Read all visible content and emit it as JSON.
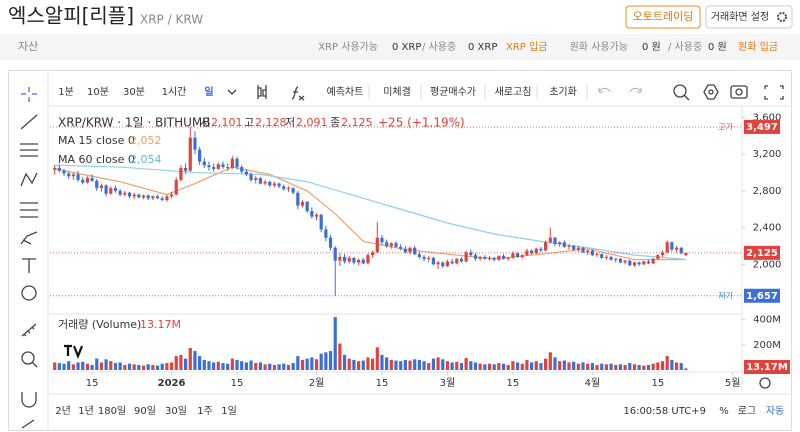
{
  "header": {
    "title": "엑스알피[리플]",
    "pair": "XRP / KRW",
    "buttons": [
      "오토트레이딩",
      "거래화면 설정"
    ]
  },
  "assets": {
    "label": "자산",
    "xrp": {
      "available_label": "XRP 사용가능",
      "available": "0 XRP",
      "in_use_label": "/ 사용중",
      "in_use": "0 XRP",
      "deposit": "XRP 입금"
    },
    "krw": {
      "available_label": "원화 사용가능",
      "available": "0 원",
      "in_use_label": "/ 사용중",
      "in_use": "0 원",
      "deposit": "원화 입금"
    }
  },
  "toolbar": {
    "intervals": [
      "1분",
      "10분",
      "30분",
      "1시간",
      "일"
    ],
    "actions": [
      "예측차트",
      "미체결",
      "평균매수가",
      "새로고침",
      "초기화"
    ]
  },
  "chart_data": {
    "type": "candlestick",
    "title": "XRP/KRW · 1일 · BITHUMB",
    "legend_values": [
      {
        "label": "시",
        "value": "2,101"
      },
      {
        "label": "고",
        "value": "2,128"
      },
      {
        "label": "저",
        "value": "2,091"
      },
      {
        "label": "종",
        "value": "2,125"
      }
    ],
    "change": "+25 (+1.19%)",
    "up_color": "#e0433d",
    "down_color": "#3b6fd8",
    "x": [
      6,
      7,
      8,
      9,
      10,
      11,
      12,
      13,
      14,
      15,
      16,
      17,
      18,
      19,
      20,
      21,
      22,
      23,
      24,
      25,
      26,
      27,
      28,
      29,
      30,
      31,
      32,
      33,
      34,
      35,
      36,
      37,
      38,
      39,
      40,
      41,
      42,
      43,
      44,
      45,
      46,
      47,
      48,
      49,
      50,
      51,
      52,
      53,
      54,
      55,
      56,
      57,
      58,
      59,
      60,
      61,
      62,
      63,
      64,
      65,
      66,
      67,
      68,
      69,
      70,
      71,
      72,
      73,
      74,
      75,
      76,
      77,
      78,
      79,
      80,
      81,
      82,
      83,
      84,
      85,
      86,
      87,
      88,
      89,
      90,
      91,
      92,
      93,
      94,
      95,
      96,
      97,
      98,
      99,
      100,
      101,
      102,
      103,
      104,
      105,
      106,
      107,
      108,
      109,
      110,
      111,
      112,
      113,
      114,
      115,
      116,
      117,
      118,
      119,
      120,
      121,
      122,
      123,
      124,
      125,
      126,
      127,
      128,
      129,
      130,
      131,
      132,
      133,
      134,
      135,
      136,
      137,
      138,
      139,
      140,
      141
    ],
    "open": [
      3030,
      3050,
      3020,
      2990,
      2960,
      2980,
      2920,
      2890,
      2940,
      2910,
      2830,
      2860,
      2770,
      2830,
      2800,
      2760,
      2780,
      2740,
      2760,
      2730,
      2750,
      2720,
      2740,
      2720,
      2700,
      2740,
      2760,
      2920,
      3050,
      3020,
      3380,
      3250,
      3120,
      3080,
      3060,
      3040,
      3090,
      3060,
      3050,
      3150,
      3060,
      3010,
      2980,
      2920,
      2940,
      2880,
      2900,
      2860,
      2880,
      2850,
      2820,
      2830,
      2780,
      2640,
      2680,
      2580,
      2520,
      2540,
      2380,
      2290,
      2180,
      2040,
      2080,
      2030,
      2070,
      2020,
      2050,
      2010,
      2100,
      2130,
      2290,
      2240,
      2200,
      2230,
      2190,
      2170,
      2130,
      2180,
      2110,
      2080,
      2060,
      2070,
      2000,
      2020,
      1980,
      2030,
      2010,
      2060,
      2030,
      2130,
      2100,
      2060,
      2080,
      2060,
      2070,
      2050,
      2090,
      2060,
      2070,
      2120,
      2080,
      2100,
      2150,
      2120,
      2170,
      2150,
      2240,
      2290,
      2220,
      2240,
      2190,
      2200,
      2160,
      2180,
      2130,
      2150,
      2100,
      2110,
      2070,
      2080,
      2050,
      2060,
      2020,
      2040,
      1990,
      2020,
      2000,
      2030,
      2010,
      2060,
      2100,
      2130,
      2240,
      2160,
      2180,
      2101
    ],
    "high": [
      3080,
      3090,
      3040,
      3010,
      3000,
      3020,
      2950,
      2960,
      2980,
      2930,
      2880,
      2870,
      2850,
      2860,
      2820,
      2800,
      2790,
      2780,
      2770,
      2760,
      2760,
      2750,
      2760,
      2740,
      2760,
      2790,
      2950,
      3080,
      3100,
      3497,
      3450,
      3280,
      3160,
      3120,
      3100,
      3110,
      3120,
      3100,
      3180,
      3170,
      3080,
      3040,
      3000,
      2960,
      2950,
      2920,
      2910,
      2900,
      2890,
      2870,
      2850,
      2840,
      2800,
      2700,
      2690,
      2620,
      2560,
      2550,
      2420,
      2320,
      2200,
      2120,
      2110,
      2090,
      2080,
      2060,
      2070,
      2120,
      2150,
      2460,
      2320,
      2270,
      2240,
      2250,
      2220,
      2200,
      2190,
      2200,
      2140,
      2100,
      2090,
      2080,
      2040,
      2030,
      2050,
      2060,
      2070,
      2080,
      2150,
      2160,
      2120,
      2090,
      2100,
      2090,
      2080,
      2100,
      2110,
      2080,
      2140,
      2130,
      2110,
      2170,
      2160,
      2180,
      2190,
      2260,
      2400,
      2300,
      2250,
      2260,
      2220,
      2210,
      2200,
      2190,
      2160,
      2160,
      2130,
      2120,
      2100,
      2090,
      2070,
      2070,
      2050,
      2050,
      2030,
      2030,
      2040,
      2050,
      2070,
      2110,
      2150,
      2260,
      2250,
      2200,
      2190,
      2128
    ],
    "low": [
      2980,
      3000,
      2960,
      2930,
      2920,
      2900,
      2870,
      2880,
      2900,
      2800,
      2790,
      2740,
      2760,
      2780,
      2740,
      2740,
      2720,
      2710,
      2720,
      2710,
      2700,
      2700,
      2710,
      2690,
      2680,
      2720,
      2750,
      2900,
      2980,
      3010,
      3200,
      3080,
      3050,
      3020,
      3010,
      3030,
      3040,
      3020,
      3040,
      3030,
      2990,
      2960,
      2900,
      2880,
      2870,
      2860,
      2840,
      2840,
      2830,
      2800,
      2790,
      2760,
      2600,
      2620,
      2560,
      2500,
      2480,
      2350,
      2250,
      2150,
      1657,
      1980,
      2010,
      2010,
      2000,
      1990,
      2000,
      2000,
      2070,
      2120,
      2210,
      2180,
      2170,
      2180,
      2150,
      2120,
      2110,
      2100,
      2060,
      2030,
      2030,
      1990,
      1950,
      1960,
      1970,
      2000,
      2000,
      2020,
      2020,
      2080,
      2040,
      2040,
      2050,
      2040,
      2030,
      2040,
      2050,
      2040,
      2060,
      2070,
      2060,
      2090,
      2100,
      2110,
      2130,
      2140,
      2230,
      2200,
      2190,
      2180,
      2160,
      2140,
      2140,
      2120,
      2100,
      2090,
      2080,
      2060,
      2050,
      2040,
      2020,
      2010,
      2000,
      1980,
      1970,
      1980,
      1990,
      2000,
      2000,
      2050,
      2080,
      2120,
      2140,
      2130,
      2110,
      2091
    ],
    "close": [
      3050,
      3020,
      2990,
      2960,
      2980,
      2920,
      2890,
      2940,
      2910,
      2830,
      2860,
      2770,
      2830,
      2800,
      2760,
      2780,
      2740,
      2760,
      2730,
      2750,
      2720,
      2740,
      2720,
      2700,
      2740,
      2760,
      2920,
      3050,
      3020,
      3380,
      3250,
      3120,
      3080,
      3060,
      3040,
      3090,
      3060,
      3050,
      3150,
      3060,
      3010,
      2980,
      2920,
      2940,
      2880,
      2900,
      2860,
      2880,
      2850,
      2820,
      2830,
      2780,
      2640,
      2680,
      2580,
      2520,
      2540,
      2380,
      2290,
      2180,
      2040,
      2080,
      2030,
      2070,
      2020,
      2050,
      2010,
      2100,
      2130,
      2290,
      2240,
      2200,
      2230,
      2190,
      2170,
      2130,
      2180,
      2110,
      2080,
      2060,
      2070,
      2000,
      2020,
      1980,
      2030,
      2010,
      2060,
      2030,
      2130,
      2100,
      2060,
      2080,
      2060,
      2070,
      2050,
      2090,
      2060,
      2070,
      2120,
      2080,
      2100,
      2150,
      2120,
      2170,
      2150,
      2240,
      2290,
      2220,
      2240,
      2190,
      2200,
      2160,
      2180,
      2130,
      2150,
      2100,
      2110,
      2070,
      2080,
      2050,
      2060,
      2020,
      2040,
      1990,
      2020,
      2000,
      2030,
      2010,
      2060,
      2100,
      2130,
      2240,
      2160,
      2180,
      2120,
      2125
    ],
    "volume": [
      60,
      55,
      50,
      70,
      45,
      60,
      65,
      50,
      40,
      90,
      60,
      85,
      70,
      55,
      60,
      40,
      50,
      45,
      40,
      35,
      45,
      40,
      35,
      50,
      55,
      60,
      110,
      120,
      90,
      175,
      150,
      110,
      80,
      70,
      60,
      65,
      55,
      50,
      90,
      80,
      70,
      60,
      75,
      55,
      60,
      45,
      50,
      40,
      45,
      50,
      40,
      55,
      110,
      80,
      90,
      100,
      85,
      130,
      140,
      150,
      420,
      210,
      120,
      90,
      80,
      70,
      75,
      100,
      90,
      180,
      120,
      100,
      80,
      75,
      70,
      80,
      75,
      85,
      80,
      70,
      55,
      90,
      100,
      85,
      70,
      60,
      65,
      55,
      95,
      70,
      60,
      50,
      45,
      50,
      45,
      55,
      50,
      40,
      70,
      60,
      50,
      80,
      60,
      70,
      55,
      90,
      140,
      100,
      70,
      75,
      60,
      65,
      50,
      60,
      50,
      55,
      40,
      50,
      45,
      50,
      40,
      45,
      40,
      55,
      45,
      40,
      35,
      40,
      50,
      60,
      70,
      110,
      80,
      60,
      55,
      13.17
    ],
    "moving_averages": [
      {
        "name": "MA 15 close 0",
        "value_label": "2,052",
        "color": "#f2a06e",
        "x": [
          6,
          20,
          30,
          36,
          44,
          52,
          60,
          66,
          72,
          80,
          90,
          100,
          110,
          120,
          130,
          141
        ],
        "values": [
          3040,
          2900,
          2760,
          2880,
          3060,
          2980,
          2800,
          2550,
          2250,
          2170,
          2110,
          2060,
          2110,
          2170,
          2050,
          2052
        ]
      },
      {
        "name": "MA 60 close 0",
        "value_label": "2,054",
        "color": "#8fd0ea",
        "x": [
          6,
          20,
          36,
          50,
          60,
          70,
          80,
          90,
          100,
          110,
          120,
          130,
          141
        ],
        "values": [
          3080,
          3060,
          3000,
          2980,
          2900,
          2750,
          2600,
          2450,
          2330,
          2250,
          2180,
          2100,
          2054
        ]
      }
    ],
    "xlim": [
      5,
      153
    ],
    "xticks": [
      {
        "value": 14,
        "label": "15"
      },
      {
        "value": 31,
        "label": "2026"
      },
      {
        "value": 45,
        "label": "15"
      },
      {
        "value": 62,
        "label": "2월"
      },
      {
        "value": 76,
        "label": "15"
      },
      {
        "value": 90,
        "label": "3월"
      },
      {
        "value": 104,
        "label": "15"
      },
      {
        "value": 121,
        "label": "4월"
      },
      {
        "value": 135,
        "label": "15"
      },
      {
        "value": 151,
        "label": "5월"
      }
    ],
    "ylim": [
      1480,
      3660
    ],
    "yticks": [
      {
        "value": 2000,
        "label": "2,000"
      },
      {
        "value": 2400,
        "label": "2,400"
      },
      {
        "value": 2800,
        "label": "2,800"
      },
      {
        "value": 3200,
        "label": "3,200"
      },
      {
        "value": 3600,
        "label": "3,600"
      }
    ],
    "volume_label": "거래량 (Volume)",
    "volume_value_label": "13.17M",
    "y2lim": [
      0,
      460
    ],
    "y2ticks": [
      {
        "value": 200,
        "label": "200M"
      },
      {
        "value": 400,
        "label": "400M"
      }
    ],
    "markers": {
      "high": {
        "value": 3497,
        "label": "3,497",
        "tag": "고가"
      },
      "current": {
        "value": 2125,
        "label": "2,125"
      },
      "low": {
        "value": 1657,
        "label": "1,657",
        "tag": "저가"
      }
    }
  },
  "footer": {
    "ranges": [
      "2년",
      "1년",
      "180일",
      "90일",
      "30일",
      "1주",
      "1일"
    ],
    "time": "16:00:58 UTC+9",
    "options": [
      "%",
      "로그",
      "자동"
    ]
  }
}
